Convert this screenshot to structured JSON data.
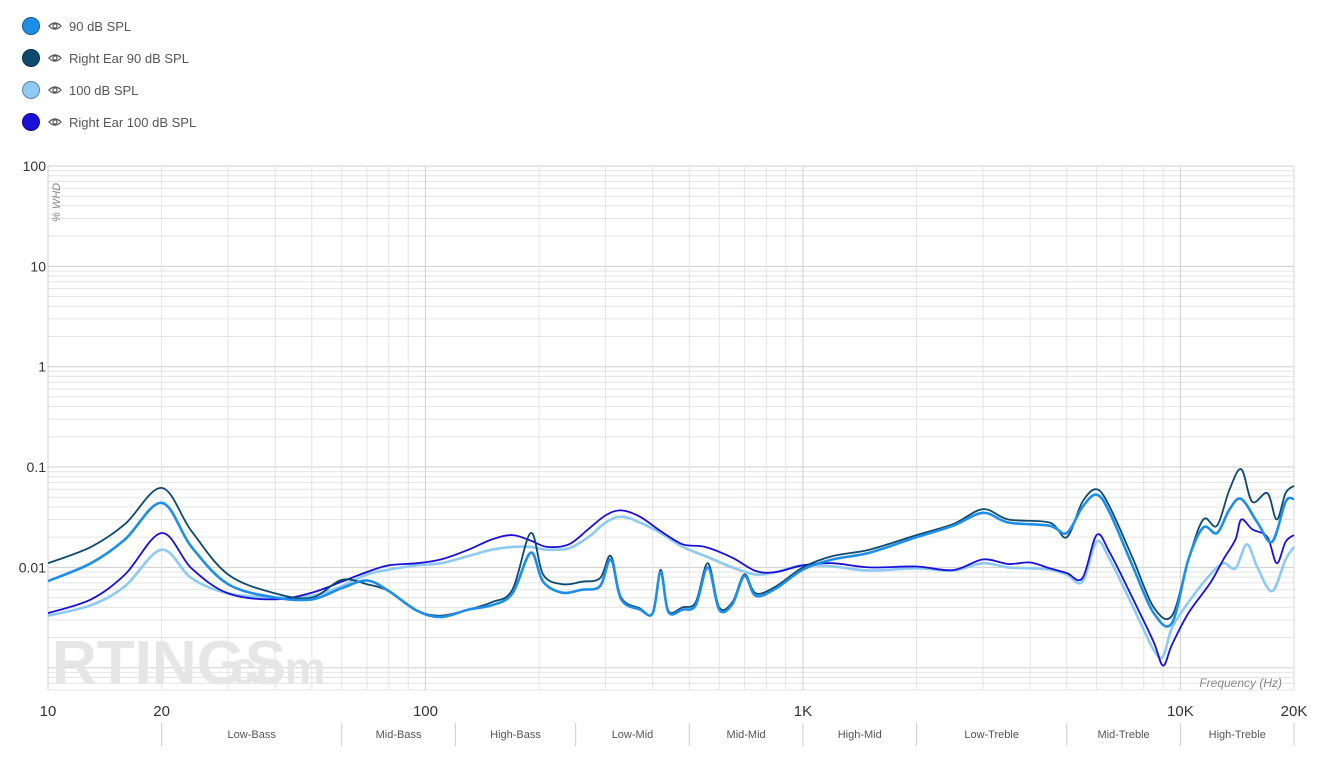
{
  "legend": [
    {
      "label": "90 dB SPL",
      "color": "#1e8ee8"
    },
    {
      "label": "Right Ear 90 dB SPL",
      "color": "#0d4a6e"
    },
    {
      "label": "100 dB SPL",
      "color": "#8fcaf3"
    },
    {
      "label": "Right Ear 100 dB SPL",
      "color": "#1a10d8"
    }
  ],
  "icons": {
    "visibility": "eye-icon"
  },
  "watermark": {
    "brand": "RTINGS",
    "suffix": ".com"
  },
  "chart_data": {
    "type": "line",
    "title": "",
    "xlabel": "Frequency (Hz)",
    "ylabel": "% WHD",
    "x_scale": "log",
    "y_scale": "log",
    "xlim": [
      10,
      20000
    ],
    "ylim": [
      0.0006,
      100
    ],
    "x_ticks": [
      {
        "value": 10,
        "label": "10"
      },
      {
        "value": 20,
        "label": "20"
      },
      {
        "value": 100,
        "label": "100"
      },
      {
        "value": 1000,
        "label": "1K"
      },
      {
        "value": 10000,
        "label": "10K"
      },
      {
        "value": 20000,
        "label": "20K"
      }
    ],
    "y_ticks": [
      {
        "value": 100,
        "label": "100"
      },
      {
        "value": 10,
        "label": "10"
      },
      {
        "value": 1,
        "label": "1"
      },
      {
        "value": 0.1,
        "label": "0.1"
      },
      {
        "value": 0.01,
        "label": "0.01"
      }
    ],
    "grid": true,
    "bands": [
      {
        "label": "Low-Bass",
        "from": 20,
        "to": 60
      },
      {
        "label": "Mid-Bass",
        "from": 60,
        "to": 120
      },
      {
        "label": "High-Bass",
        "from": 120,
        "to": 250
      },
      {
        "label": "Low-Mid",
        "from": 250,
        "to": 500
      },
      {
        "label": "Mid-Mid",
        "from": 500,
        "to": 1000
      },
      {
        "label": "High-Mid",
        "from": 1000,
        "to": 2000
      },
      {
        "label": "Low-Treble",
        "from": 2000,
        "to": 5000
      },
      {
        "label": "Mid-Treble",
        "from": 5000,
        "to": 10000
      },
      {
        "label": "High-Treble",
        "from": 10000,
        "to": 20000
      }
    ],
    "series": [
      {
        "name": "90 dB SPL",
        "color": "#1e8ee8",
        "points": [
          [
            10,
            0.0073
          ],
          [
            13,
            0.011
          ],
          [
            16,
            0.019
          ],
          [
            20,
            0.044
          ],
          [
            24,
            0.016
          ],
          [
            30,
            0.0068
          ],
          [
            40,
            0.005
          ],
          [
            50,
            0.0048
          ],
          [
            60,
            0.0062
          ],
          [
            70,
            0.0074
          ],
          [
            80,
            0.0058
          ],
          [
            95,
            0.0037
          ],
          [
            110,
            0.0032
          ],
          [
            130,
            0.0038
          ],
          [
            150,
            0.0042
          ],
          [
            170,
            0.0055
          ],
          [
            190,
            0.014
          ],
          [
            205,
            0.0072
          ],
          [
            230,
            0.0056
          ],
          [
            260,
            0.006
          ],
          [
            290,
            0.0065
          ],
          [
            310,
            0.012
          ],
          [
            330,
            0.0048
          ],
          [
            370,
            0.0038
          ],
          [
            400,
            0.0035
          ],
          [
            420,
            0.009
          ],
          [
            440,
            0.0036
          ],
          [
            480,
            0.0038
          ],
          [
            520,
            0.0042
          ],
          [
            560,
            0.01
          ],
          [
            600,
            0.0038
          ],
          [
            650,
            0.0043
          ],
          [
            700,
            0.0082
          ],
          [
            750,
            0.0052
          ],
          [
            850,
            0.0062
          ],
          [
            1000,
            0.0095
          ],
          [
            1200,
            0.012
          ],
          [
            1500,
            0.014
          ],
          [
            2000,
            0.02
          ],
          [
            2500,
            0.026
          ],
          [
            3000,
            0.035
          ],
          [
            3500,
            0.028
          ],
          [
            4500,
            0.026
          ],
          [
            5000,
            0.022
          ],
          [
            5500,
            0.04
          ],
          [
            6000,
            0.053
          ],
          [
            6500,
            0.035
          ],
          [
            7500,
            0.01
          ],
          [
            8500,
            0.0035
          ],
          [
            9500,
            0.0028
          ],
          [
            10500,
            0.012
          ],
          [
            11500,
            0.025
          ],
          [
            12500,
            0.022
          ],
          [
            13500,
            0.038
          ],
          [
            14500,
            0.048
          ],
          [
            16000,
            0.028
          ],
          [
            17500,
            0.018
          ],
          [
            19000,
            0.045
          ],
          [
            20000,
            0.048
          ]
        ]
      },
      {
        "name": "Right Ear 90 dB SPL",
        "color": "#0d4a6e",
        "points": [
          [
            10,
            0.011
          ],
          [
            13,
            0.016
          ],
          [
            16,
            0.027
          ],
          [
            20,
            0.062
          ],
          [
            24,
            0.023
          ],
          [
            30,
            0.0085
          ],
          [
            40,
            0.0055
          ],
          [
            50,
            0.005
          ],
          [
            60,
            0.0075
          ],
          [
            70,
            0.0068
          ],
          [
            80,
            0.0058
          ],
          [
            95,
            0.0037
          ],
          [
            110,
            0.0033
          ],
          [
            130,
            0.0038
          ],
          [
            150,
            0.0045
          ],
          [
            170,
            0.006
          ],
          [
            190,
            0.022
          ],
          [
            205,
            0.0085
          ],
          [
            230,
            0.0068
          ],
          [
            260,
            0.0072
          ],
          [
            290,
            0.0078
          ],
          [
            310,
            0.013
          ],
          [
            330,
            0.005
          ],
          [
            370,
            0.0039
          ],
          [
            400,
            0.0035
          ],
          [
            420,
            0.0095
          ],
          [
            440,
            0.0037
          ],
          [
            480,
            0.004
          ],
          [
            520,
            0.0045
          ],
          [
            560,
            0.011
          ],
          [
            600,
            0.004
          ],
          [
            650,
            0.0045
          ],
          [
            700,
            0.0085
          ],
          [
            750,
            0.0055
          ],
          [
            850,
            0.0065
          ],
          [
            1000,
            0.01
          ],
          [
            1200,
            0.013
          ],
          [
            1500,
            0.015
          ],
          [
            2000,
            0.021
          ],
          [
            2500,
            0.027
          ],
          [
            3000,
            0.038
          ],
          [
            3500,
            0.03
          ],
          [
            4500,
            0.028
          ],
          [
            5000,
            0.02
          ],
          [
            5500,
            0.045
          ],
          [
            6000,
            0.06
          ],
          [
            6500,
            0.04
          ],
          [
            7500,
            0.012
          ],
          [
            8500,
            0.004
          ],
          [
            9500,
            0.0033
          ],
          [
            10500,
            0.012
          ],
          [
            11500,
            0.03
          ],
          [
            12500,
            0.026
          ],
          [
            13500,
            0.06
          ],
          [
            14500,
            0.095
          ],
          [
            15500,
            0.045
          ],
          [
            17000,
            0.055
          ],
          [
            18000,
            0.03
          ],
          [
            19000,
            0.055
          ],
          [
            20000,
            0.065
          ]
        ]
      },
      {
        "name": "100 dB SPL",
        "color": "#8fcaf3",
        "points": [
          [
            10,
            0.0033
          ],
          [
            13,
            0.0042
          ],
          [
            16,
            0.0065
          ],
          [
            20,
            0.015
          ],
          [
            24,
            0.0078
          ],
          [
            30,
            0.0055
          ],
          [
            40,
            0.005
          ],
          [
            50,
            0.0052
          ],
          [
            60,
            0.0065
          ],
          [
            70,
            0.0085
          ],
          [
            80,
            0.0095
          ],
          [
            95,
            0.0105
          ],
          [
            110,
            0.011
          ],
          [
            130,
            0.013
          ],
          [
            150,
            0.015
          ],
          [
            170,
            0.016
          ],
          [
            190,
            0.016
          ],
          [
            210,
            0.015
          ],
          [
            240,
            0.0155
          ],
          [
            270,
            0.02
          ],
          [
            300,
            0.028
          ],
          [
            330,
            0.032
          ],
          [
            370,
            0.028
          ],
          [
            420,
            0.022
          ],
          [
            480,
            0.016
          ],
          [
            550,
            0.013
          ],
          [
            650,
            0.01
          ],
          [
            750,
            0.0085
          ],
          [
            850,
            0.009
          ],
          [
            1000,
            0.0105
          ],
          [
            1200,
            0.0102
          ],
          [
            1500,
            0.0093
          ],
          [
            2000,
            0.0098
          ],
          [
            2500,
            0.0093
          ],
          [
            3000,
            0.011
          ],
          [
            3500,
            0.01
          ],
          [
            4000,
            0.0098
          ],
          [
            4500,
            0.0095
          ],
          [
            5000,
            0.0085
          ],
          [
            5500,
            0.0072
          ],
          [
            6000,
            0.018
          ],
          [
            6500,
            0.012
          ],
          [
            7500,
            0.004
          ],
          [
            8500,
            0.0015
          ],
          [
            9000,
            0.0013
          ],
          [
            9500,
            0.0025
          ],
          [
            10500,
            0.0045
          ],
          [
            12000,
            0.0085
          ],
          [
            13000,
            0.011
          ],
          [
            14000,
            0.0098
          ],
          [
            15000,
            0.017
          ],
          [
            16000,
            0.01
          ],
          [
            17500,
            0.0058
          ],
          [
            19000,
            0.012
          ],
          [
            20000,
            0.016
          ]
        ]
      },
      {
        "name": "Right Ear 100 dB SPL",
        "color": "#1a10d8",
        "points": [
          [
            10,
            0.0035
          ],
          [
            13,
            0.0048
          ],
          [
            16,
            0.0085
          ],
          [
            20,
            0.022
          ],
          [
            24,
            0.0098
          ],
          [
            30,
            0.0055
          ],
          [
            40,
            0.0048
          ],
          [
            50,
            0.0056
          ],
          [
            60,
            0.0072
          ],
          [
            70,
            0.009
          ],
          [
            80,
            0.0105
          ],
          [
            95,
            0.011
          ],
          [
            110,
            0.012
          ],
          [
            130,
            0.015
          ],
          [
            150,
            0.019
          ],
          [
            170,
            0.021
          ],
          [
            190,
            0.0185
          ],
          [
            210,
            0.016
          ],
          [
            240,
            0.017
          ],
          [
            270,
            0.024
          ],
          [
            300,
            0.033
          ],
          [
            330,
            0.037
          ],
          [
            370,
            0.032
          ],
          [
            420,
            0.023
          ],
          [
            480,
            0.017
          ],
          [
            550,
            0.016
          ],
          [
            650,
            0.0125
          ],
          [
            750,
            0.0092
          ],
          [
            850,
            0.009
          ],
          [
            1000,
            0.0105
          ],
          [
            1200,
            0.011
          ],
          [
            1500,
            0.01
          ],
          [
            2000,
            0.0102
          ],
          [
            2500,
            0.0094
          ],
          [
            3000,
            0.012
          ],
          [
            3500,
            0.0108
          ],
          [
            4000,
            0.0112
          ],
          [
            4500,
            0.0098
          ],
          [
            5000,
            0.0088
          ],
          [
            5500,
            0.0078
          ],
          [
            6000,
            0.021
          ],
          [
            6500,
            0.014
          ],
          [
            7500,
            0.0048
          ],
          [
            8500,
            0.0018
          ],
          [
            9000,
            0.00105
          ],
          [
            9500,
            0.0017
          ],
          [
            10500,
            0.0035
          ],
          [
            12000,
            0.007
          ],
          [
            13000,
            0.012
          ],
          [
            14000,
            0.019
          ],
          [
            14500,
            0.03
          ],
          [
            15500,
            0.024
          ],
          [
            17000,
            0.02
          ],
          [
            18000,
            0.011
          ],
          [
            19000,
            0.018
          ],
          [
            20000,
            0.021
          ]
        ]
      }
    ]
  }
}
